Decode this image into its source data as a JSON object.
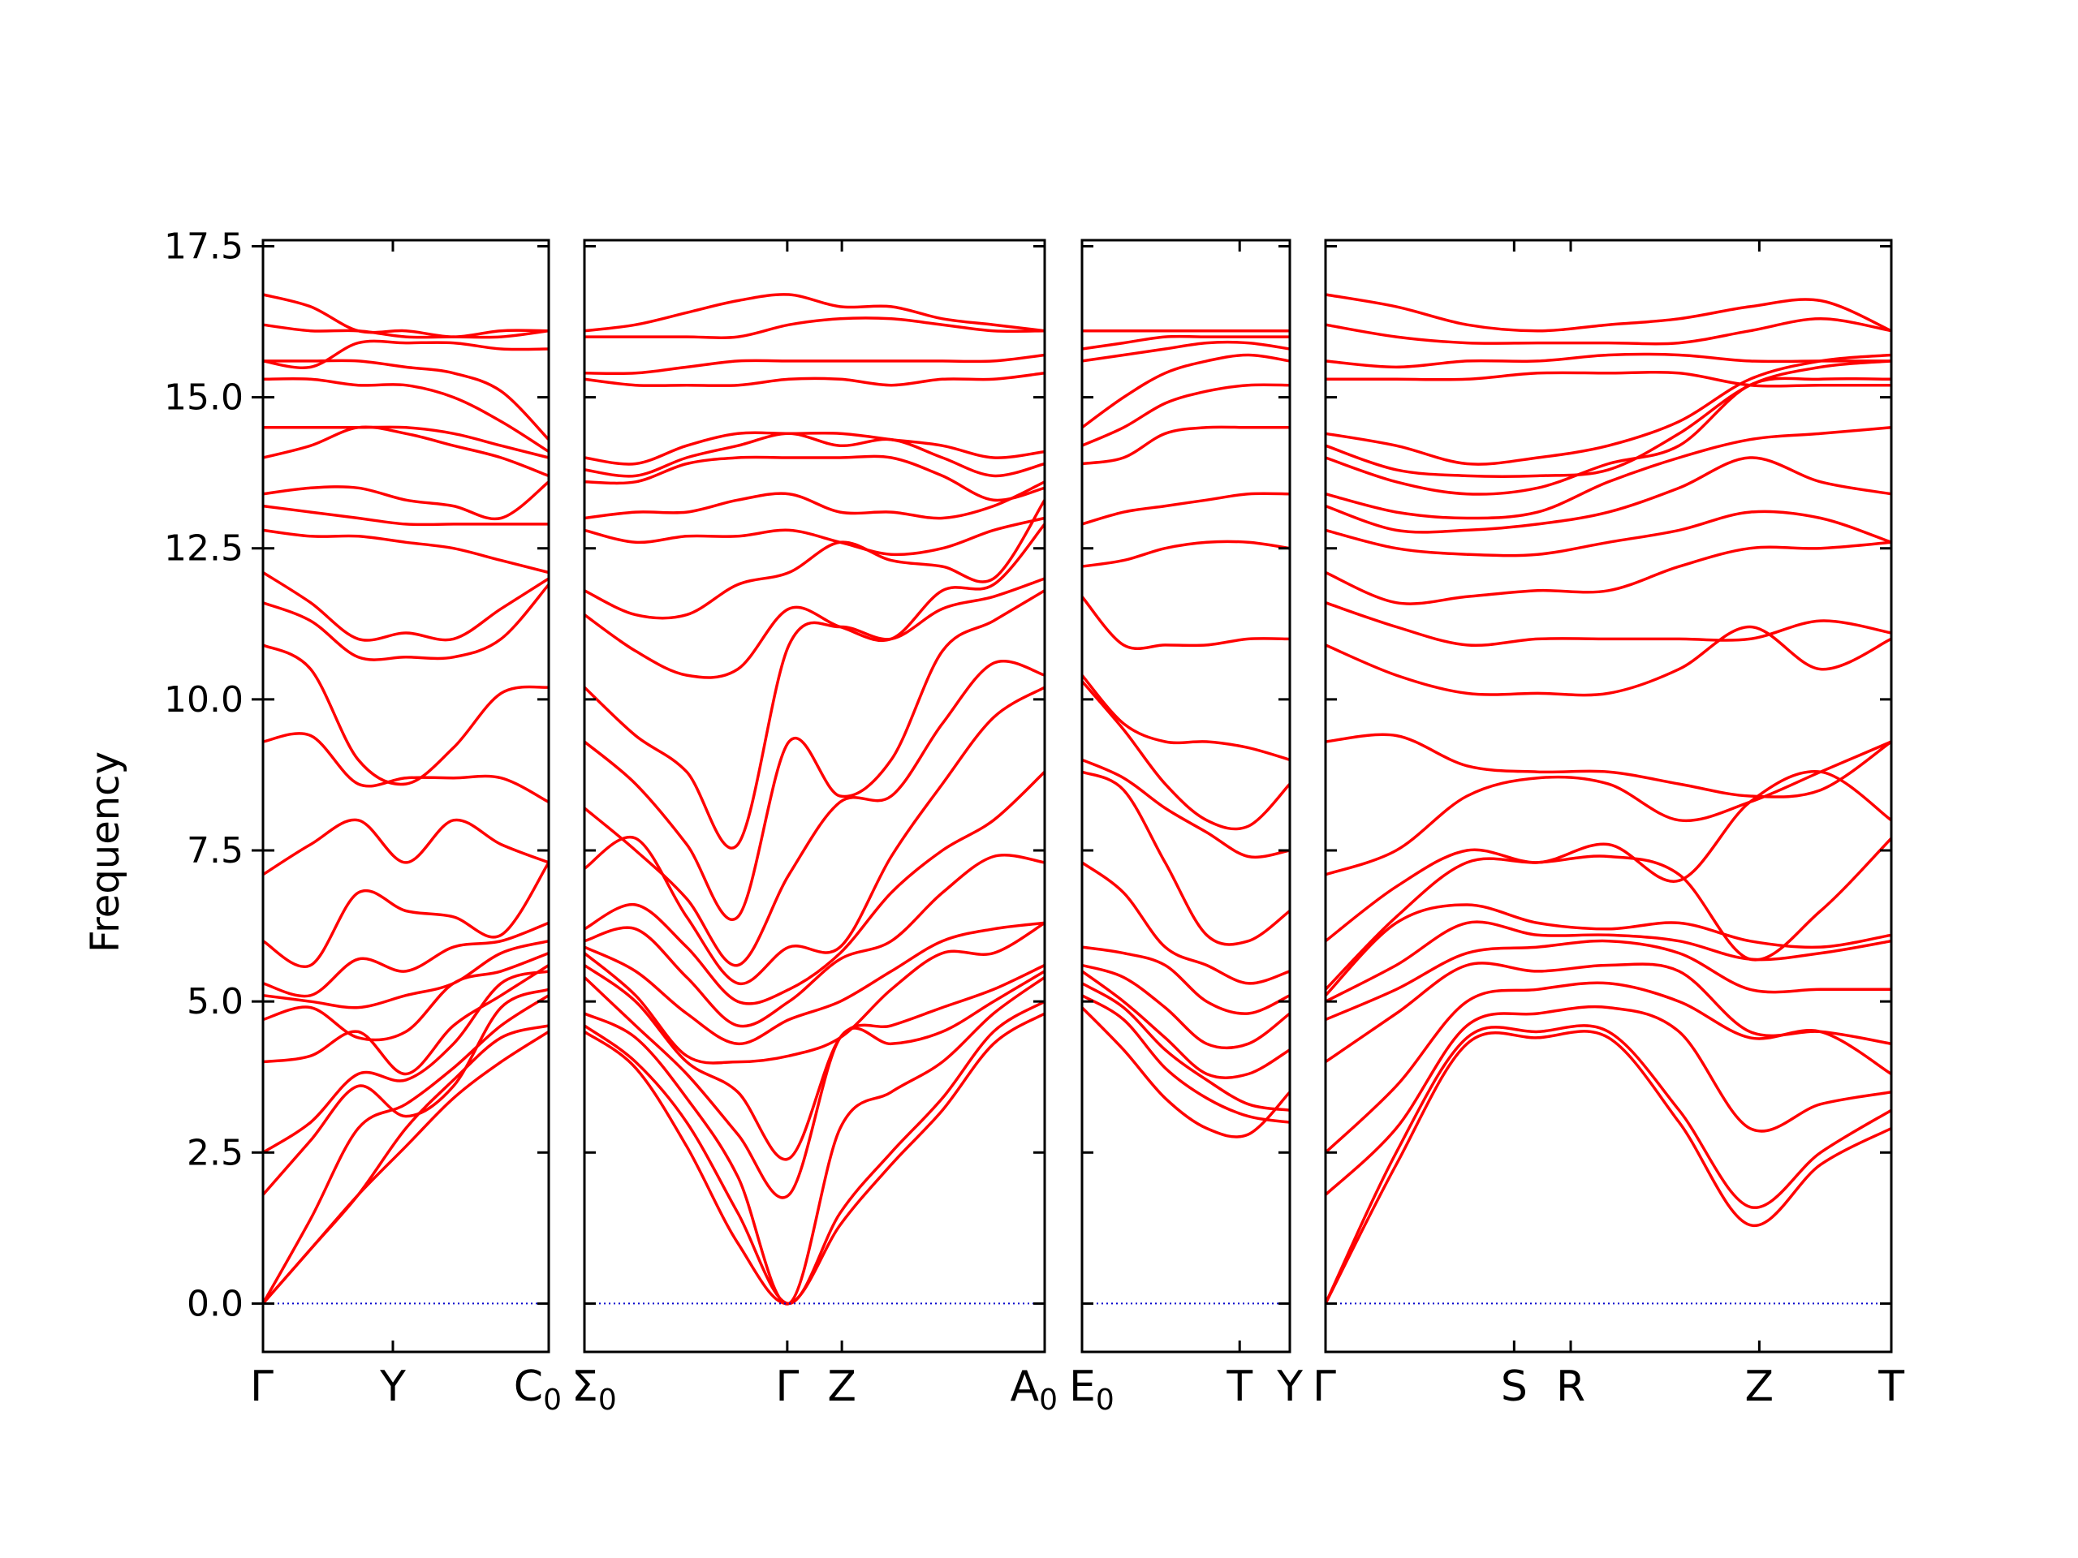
{
  "chart_data": {
    "type": "line",
    "chart_kind": "phonon band structure",
    "ylabel": "Frequency",
    "ylim": [
      -0.8,
      17.6
    ],
    "yticks": [
      "0.0",
      "2.5",
      "5.0",
      "7.5",
      "10.0",
      "12.5",
      "15.0",
      "17.5"
    ],
    "line_color": "#ff0000",
    "zero_line_color": "#0000cc",
    "grid": false,
    "panels": [
      {
        "segments": [
          {
            "from": "Γ",
            "to": "Y",
            "path_length": 1.0
          },
          {
            "from": "Y",
            "to": "C0",
            "path_length": 1.2
          }
        ],
        "bands": [
          [
            0.0,
            0.9,
            1.8,
            2.6,
            3.4,
            4.0,
            4.5
          ],
          [
            0.0,
            0.9,
            1.8,
            2.9,
            3.7,
            4.4,
            4.6
          ],
          [
            0.0,
            1.4,
            2.9,
            3.3,
            3.9,
            4.6,
            5.1
          ],
          [
            1.8,
            2.7,
            3.6,
            3.1,
            3.6,
            4.9,
            5.2
          ],
          [
            2.5,
            3.0,
            3.8,
            3.7,
            4.3,
            5.3,
            5.5
          ],
          [
            4.0,
            4.1,
            4.5,
            3.8,
            4.6,
            5.1,
            5.6
          ],
          [
            4.7,
            4.9,
            4.4,
            4.5,
            5.3,
            5.5,
            5.8
          ],
          [
            5.1,
            5.0,
            4.9,
            5.1,
            5.3,
            5.8,
            6.0
          ],
          [
            5.3,
            5.1,
            5.7,
            5.5,
            5.9,
            6.0,
            6.3
          ],
          [
            6.0,
            5.6,
            6.8,
            6.5,
            6.4,
            6.1,
            7.3
          ],
          [
            7.1,
            7.6,
            8.0,
            7.3,
            8.0,
            7.6,
            7.3
          ],
          [
            9.3,
            9.4,
            8.6,
            8.7,
            8.7,
            8.7,
            8.3
          ],
          [
            10.9,
            10.5,
            9.0,
            8.6,
            9.2,
            10.1,
            10.2
          ],
          [
            11.6,
            11.3,
            10.7,
            10.7,
            10.7,
            11.0,
            11.9
          ],
          [
            12.1,
            11.6,
            11.0,
            11.1,
            11.0,
            11.5,
            12.0
          ],
          [
            12.8,
            12.7,
            12.7,
            12.6,
            12.5,
            12.3,
            12.1
          ],
          [
            13.2,
            13.1,
            13.0,
            12.9,
            12.9,
            12.9,
            12.9
          ],
          [
            13.4,
            13.5,
            13.5,
            13.3,
            13.2,
            13.0,
            13.6
          ],
          [
            14.0,
            14.2,
            14.5,
            14.4,
            14.2,
            14.0,
            13.7
          ],
          [
            14.5,
            14.5,
            14.5,
            14.5,
            14.4,
            14.2,
            14.0
          ],
          [
            15.3,
            15.3,
            15.2,
            15.2,
            15.0,
            14.6,
            14.1
          ],
          [
            15.6,
            15.6,
            15.6,
            15.5,
            15.4,
            15.1,
            14.3
          ],
          [
            15.6,
            15.5,
            15.9,
            15.9,
            15.9,
            15.8,
            15.8
          ],
          [
            16.2,
            16.1,
            16.1,
            16.0,
            16.0,
            16.0,
            16.1
          ],
          [
            16.7,
            16.5,
            16.1,
            16.1,
            16.0,
            16.1,
            16.1
          ]
        ]
      },
      {
        "segments": [
          {
            "from": "Σ0",
            "to": "Γ",
            "path_length": 2.6
          },
          {
            "from": "Γ",
            "to": "Z",
            "path_length": 0.7
          },
          {
            "from": "Z",
            "to": "A0",
            "path_length": 2.6
          }
        ],
        "bands": [
          [
            4.5,
            3.9,
            2.6,
            1.0,
            0.0,
            1.3,
            2.3,
            3.2,
            4.3,
            4.8
          ],
          [
            4.6,
            4.0,
            3.0,
            1.5,
            0.0,
            1.5,
            2.5,
            3.4,
            4.5,
            5.0
          ],
          [
            4.8,
            4.4,
            3.4,
            2.1,
            0.0,
            2.9,
            3.5,
            4.0,
            4.8,
            5.4
          ],
          [
            5.4,
            4.6,
            3.8,
            2.8,
            1.8,
            4.4,
            4.3,
            4.5,
            5.0,
            5.5
          ],
          [
            5.6,
            5.0,
            4.0,
            3.5,
            2.4,
            4.4,
            4.6,
            4.9,
            5.2,
            5.6
          ],
          [
            5.8,
            5.1,
            4.1,
            4.0,
            4.1,
            4.4,
            5.2,
            5.8,
            5.8,
            6.3
          ],
          [
            5.9,
            5.5,
            4.8,
            4.3,
            4.7,
            5.0,
            5.5,
            6.0,
            6.2,
            6.3
          ],
          [
            6.0,
            6.2,
            5.4,
            4.6,
            5.0,
            5.7,
            6.0,
            6.8,
            7.4,
            7.3
          ],
          [
            6.2,
            6.6,
            5.9,
            5.0,
            5.2,
            5.8,
            6.8,
            7.5,
            8.0,
            8.8
          ],
          [
            7.2,
            7.7,
            6.4,
            5.3,
            5.9,
            5.9,
            7.4,
            8.6,
            9.7,
            10.2
          ],
          [
            8.2,
            7.5,
            6.7,
            5.6,
            7.1,
            8.3,
            8.4,
            9.6,
            10.6,
            10.4
          ],
          [
            9.3,
            8.6,
            7.6,
            6.4,
            9.3,
            8.4,
            9.0,
            10.8,
            11.3,
            11.8
          ],
          [
            10.2,
            9.4,
            8.8,
            7.6,
            10.9,
            11.2,
            11.0,
            11.5,
            11.7,
            12.0
          ],
          [
            11.4,
            10.8,
            10.4,
            10.5,
            11.5,
            11.2,
            11.0,
            11.8,
            11.9,
            12.9
          ],
          [
            11.8,
            11.4,
            11.4,
            11.9,
            12.1,
            12.6,
            12.3,
            12.2,
            12.0,
            13.3
          ],
          [
            12.8,
            12.6,
            12.7,
            12.7,
            12.8,
            12.6,
            12.4,
            12.5,
            12.8,
            13.0
          ],
          [
            13.0,
            13.1,
            13.1,
            13.3,
            13.4,
            13.1,
            13.1,
            13.0,
            13.2,
            13.6
          ],
          [
            13.6,
            13.6,
            13.9,
            14.0,
            14.0,
            14.0,
            14.0,
            13.7,
            13.3,
            13.5
          ],
          [
            13.8,
            13.7,
            14.0,
            14.2,
            14.4,
            14.2,
            14.3,
            14.0,
            13.7,
            13.9
          ],
          [
            14.0,
            13.9,
            14.2,
            14.4,
            14.4,
            14.4,
            14.3,
            14.2,
            14.0,
            14.1
          ],
          [
            15.3,
            15.2,
            15.2,
            15.2,
            15.3,
            15.3,
            15.2,
            15.3,
            15.3,
            15.4
          ],
          [
            15.4,
            15.4,
            15.5,
            15.6,
            15.6,
            15.6,
            15.6,
            15.6,
            15.6,
            15.7
          ],
          [
            16.0,
            16.0,
            16.0,
            16.0,
            16.2,
            16.3,
            16.3,
            16.2,
            16.1,
            16.1
          ],
          [
            16.1,
            16.2,
            16.4,
            16.6,
            16.7,
            16.5,
            16.5,
            16.3,
            16.2,
            16.1
          ]
        ]
      },
      {
        "segments": [
          {
            "from": "E0",
            "to": "T",
            "path_length": 2.2
          },
          {
            "from": "T",
            "to": "Y",
            "path_length": 0.7
          }
        ],
        "bands": [
          [
            4.9,
            4.2,
            3.4,
            2.9,
            2.8,
            3.5
          ],
          [
            5.1,
            4.7,
            3.9,
            3.4,
            3.1,
            3.0
          ],
          [
            5.3,
            4.9,
            4.2,
            3.7,
            3.3,
            3.2
          ],
          [
            5.5,
            5.0,
            4.4,
            3.8,
            3.8,
            4.2
          ],
          [
            5.6,
            5.4,
            4.9,
            4.3,
            4.3,
            4.8
          ],
          [
            5.9,
            5.8,
            5.6,
            5.0,
            4.8,
            5.1
          ],
          [
            7.3,
            6.8,
            5.9,
            5.6,
            5.3,
            5.5
          ],
          [
            8.8,
            8.5,
            7.3,
            6.1,
            6.0,
            6.5
          ],
          [
            9.0,
            8.7,
            8.2,
            7.8,
            7.4,
            7.5
          ],
          [
            10.3,
            9.5,
            8.6,
            8.0,
            7.9,
            8.6
          ],
          [
            10.4,
            9.6,
            9.3,
            9.3,
            9.2,
            9.0
          ],
          [
            11.7,
            10.9,
            10.9,
            10.9,
            11.0,
            11.0
          ],
          [
            12.2,
            12.3,
            12.5,
            12.6,
            12.6,
            12.5
          ],
          [
            12.9,
            13.1,
            13.2,
            13.3,
            13.4,
            13.4
          ],
          [
            13.9,
            14.0,
            14.4,
            14.5,
            14.5,
            14.5
          ],
          [
            14.2,
            14.5,
            14.9,
            15.1,
            15.2,
            15.2
          ],
          [
            14.5,
            15.0,
            15.4,
            15.6,
            15.7,
            15.6
          ],
          [
            15.6,
            15.7,
            15.8,
            15.9,
            15.9,
            15.8
          ],
          [
            15.8,
            15.9,
            16.0,
            16.0,
            16.0,
            16.0
          ],
          [
            16.1,
            16.1,
            16.1,
            16.1,
            16.1,
            16.1
          ]
        ]
      },
      {
        "segments": [
          {
            "from": "Γ",
            "to": "S",
            "path_length": 2.0
          },
          {
            "from": "S",
            "to": "R",
            "path_length": 0.6
          },
          {
            "from": "R",
            "to": "Z",
            "path_length": 2.0
          },
          {
            "from": "Z",
            "to": "T",
            "path_length": 1.4
          }
        ],
        "bands": [
          [
            0.0,
            2.3,
            4.3,
            4.4,
            4.4,
            3.0,
            1.3,
            2.3,
            2.9
          ],
          [
            0.0,
            2.5,
            4.4,
            4.5,
            4.5,
            3.2,
            1.6,
            2.5,
            3.2
          ],
          [
            1.8,
            2.9,
            4.6,
            4.8,
            4.9,
            4.5,
            2.9,
            3.3,
            3.5
          ],
          [
            2.5,
            3.6,
            5.0,
            5.2,
            5.3,
            5.0,
            4.4,
            4.5,
            3.8
          ],
          [
            4.0,
            4.8,
            5.6,
            5.5,
            5.6,
            5.5,
            4.5,
            4.5,
            4.3
          ],
          [
            4.7,
            5.2,
            5.8,
            5.9,
            6.0,
            5.8,
            5.2,
            5.2,
            5.2
          ],
          [
            5.0,
            5.6,
            6.3,
            6.1,
            6.1,
            6.0,
            5.7,
            5.8,
            6.0
          ],
          [
            5.1,
            6.3,
            6.6,
            6.3,
            6.2,
            6.3,
            6.0,
            5.9,
            6.1
          ],
          [
            5.2,
            6.4,
            7.3,
            7.3,
            7.4,
            7.1,
            5.7,
            6.5,
            7.7
          ],
          [
            6.0,
            6.9,
            7.5,
            7.3,
            7.6,
            7.0,
            8.3,
            8.8,
            8.0
          ],
          [
            7.1,
            7.5,
            8.4,
            8.7,
            8.6,
            8.0,
            8.3,
            8.8,
            9.3
          ],
          [
            9.3,
            9.4,
            8.9,
            8.8,
            8.8,
            8.6,
            8.4,
            8.5,
            9.3
          ],
          [
            10.9,
            10.4,
            10.1,
            10.1,
            10.1,
            10.5,
            11.2,
            10.5,
            11.0
          ],
          [
            11.6,
            11.2,
            10.9,
            11.0,
            11.0,
            11.0,
            11.0,
            11.3,
            11.1
          ],
          [
            12.1,
            11.6,
            11.7,
            11.8,
            11.8,
            12.2,
            12.5,
            12.5,
            12.6
          ],
          [
            12.8,
            12.5,
            12.4,
            12.4,
            12.6,
            12.8,
            13.1,
            13.0,
            12.6
          ],
          [
            13.2,
            12.8,
            12.8,
            12.9,
            13.1,
            13.5,
            14.0,
            13.6,
            13.4
          ],
          [
            13.4,
            13.1,
            13.0,
            13.1,
            13.6,
            14.0,
            14.3,
            14.4,
            14.5
          ],
          [
            14.0,
            13.6,
            13.4,
            13.5,
            13.9,
            14.2,
            15.2,
            15.3,
            15.3
          ],
          [
            14.2,
            13.8,
            13.7,
            13.7,
            13.8,
            14.4,
            15.2,
            15.5,
            15.6
          ],
          [
            14.4,
            14.2,
            13.9,
            14.0,
            14.2,
            14.6,
            15.3,
            15.6,
            15.7
          ],
          [
            15.3,
            15.3,
            15.3,
            15.4,
            15.4,
            15.4,
            15.2,
            15.2,
            15.2
          ],
          [
            15.6,
            15.5,
            15.6,
            15.6,
            15.7,
            15.7,
            15.6,
            15.6,
            15.6
          ],
          [
            16.2,
            16.0,
            15.9,
            15.9,
            15.9,
            15.9,
            16.1,
            16.3,
            16.1
          ],
          [
            16.7,
            16.5,
            16.2,
            16.1,
            16.2,
            16.3,
            16.5,
            16.6,
            16.1
          ]
        ]
      }
    ]
  }
}
